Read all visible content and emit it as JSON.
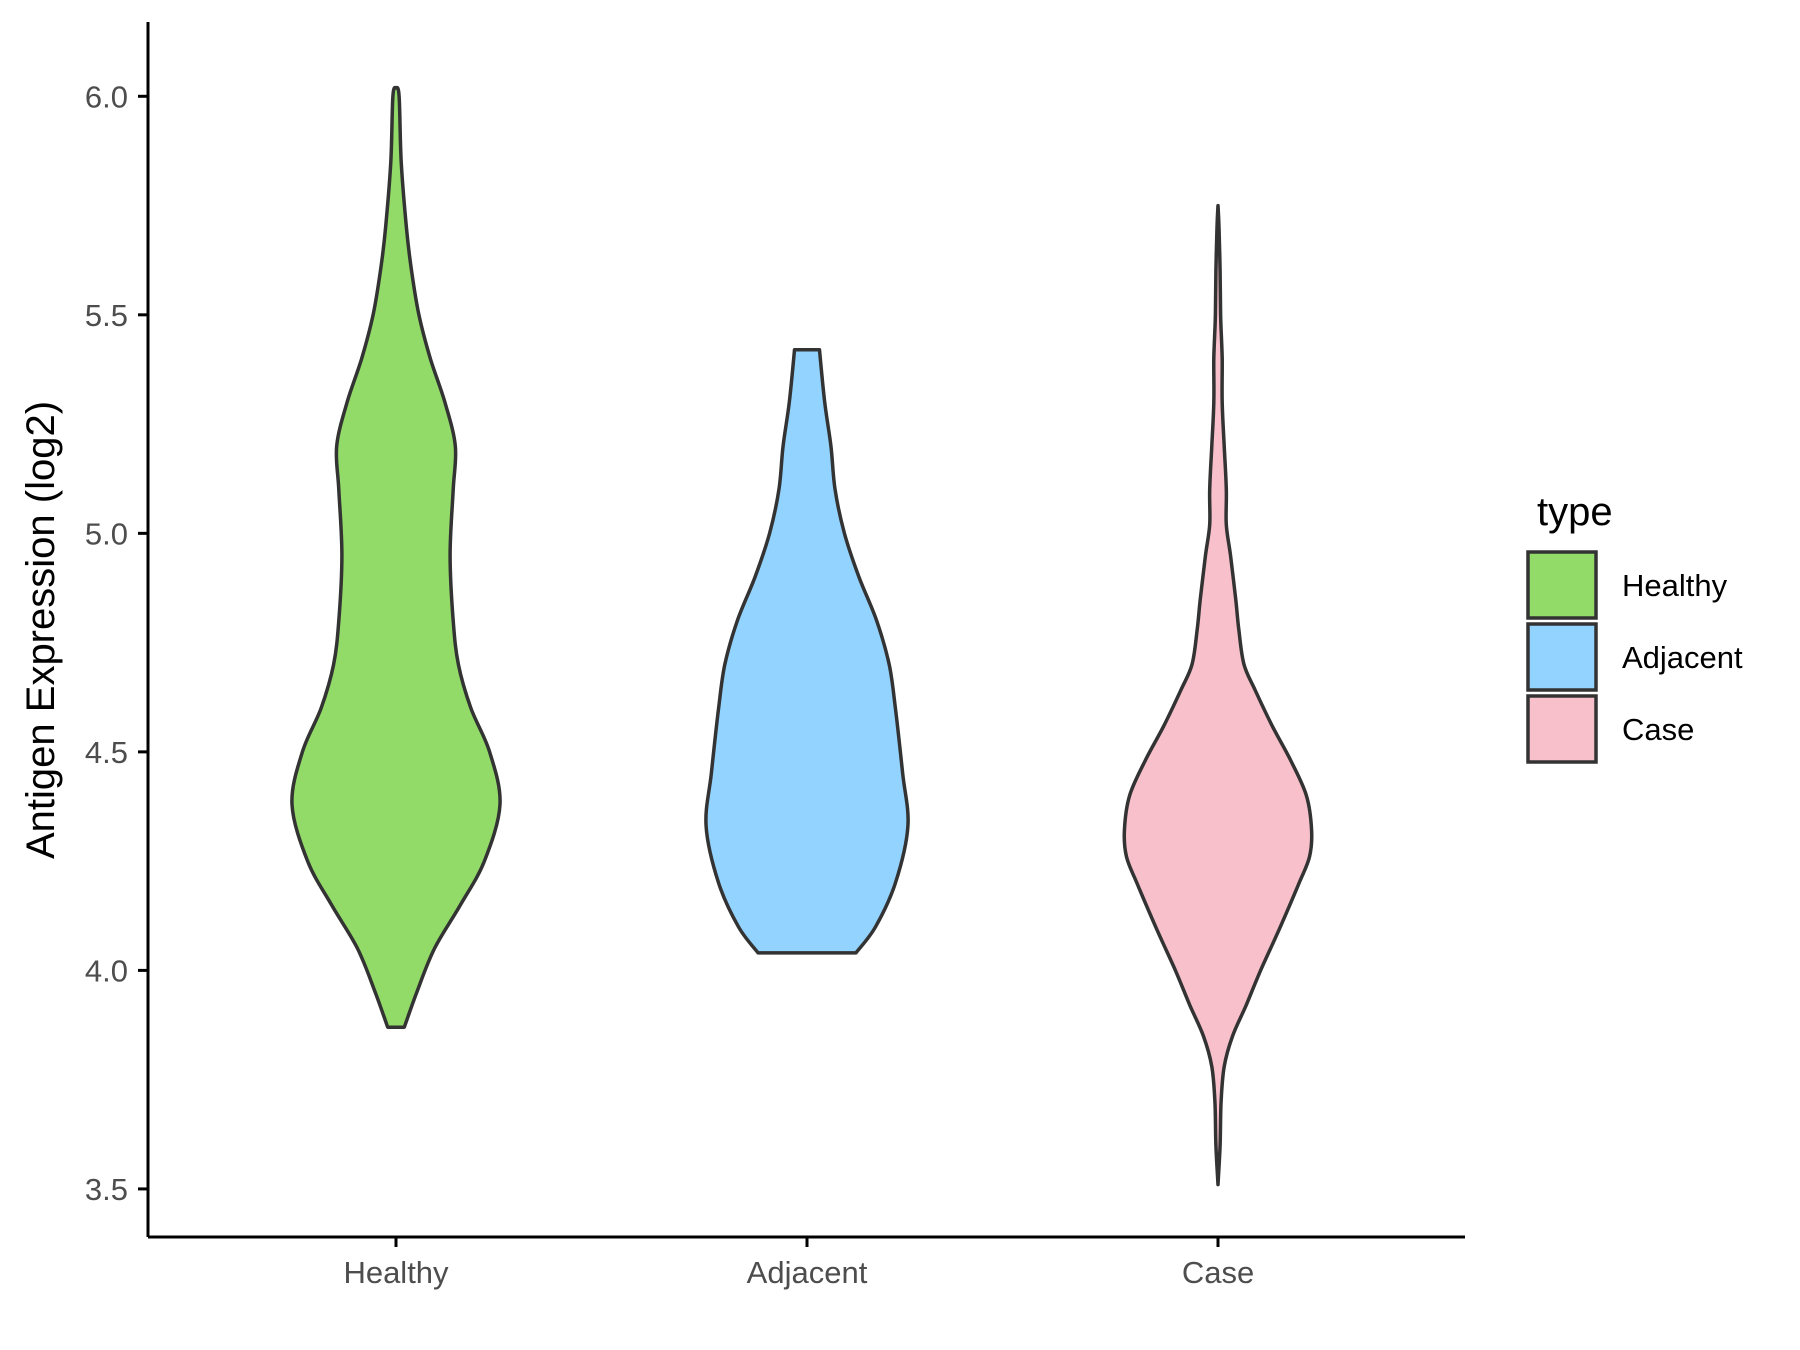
{
  "chart_data": {
    "type": "violin",
    "xlabel": "",
    "ylabel": "Antigen Expression (log2)",
    "ylim": [
      3.39,
      6.17
    ],
    "y_ticks": [
      "3.5",
      "4.0",
      "4.5",
      "5.0",
      "5.5",
      "6.0"
    ],
    "y_tick_values": [
      3.5,
      4.0,
      4.5,
      5.0,
      5.5,
      6.0
    ],
    "categories": [
      "Healthy",
      "Adjacent",
      "Case"
    ],
    "grid": false,
    "legend": {
      "title": "type",
      "position": "right",
      "entries": [
        "Healthy",
        "Adjacent",
        "Case"
      ]
    },
    "series": [
      {
        "name": "Healthy",
        "color": "#93DB69",
        "min": 3.87,
        "max": 6.02,
        "density_profile": [
          [
            3.87,
            0.08
          ],
          [
            3.95,
            0.2
          ],
          [
            4.05,
            0.37
          ],
          [
            4.15,
            0.62
          ],
          [
            4.25,
            0.85
          ],
          [
            4.38,
            1.0
          ],
          [
            4.5,
            0.9
          ],
          [
            4.6,
            0.72
          ],
          [
            4.7,
            0.6
          ],
          [
            4.8,
            0.55
          ],
          [
            4.95,
            0.52
          ],
          [
            5.1,
            0.55
          ],
          [
            5.2,
            0.57
          ],
          [
            5.3,
            0.47
          ],
          [
            5.4,
            0.33
          ],
          [
            5.5,
            0.22
          ],
          [
            5.6,
            0.15
          ],
          [
            5.7,
            0.1
          ],
          [
            5.85,
            0.05
          ],
          [
            6.0,
            0.03
          ],
          [
            6.02,
            0.0
          ]
        ]
      },
      {
        "name": "Adjacent",
        "color": "#93D3FF",
        "min": 4.04,
        "max": 5.42,
        "density_profile": [
          [
            4.04,
            0.47
          ],
          [
            4.1,
            0.66
          ],
          [
            4.2,
            0.85
          ],
          [
            4.33,
            0.97
          ],
          [
            4.45,
            0.92
          ],
          [
            4.6,
            0.85
          ],
          [
            4.7,
            0.79
          ],
          [
            4.8,
            0.67
          ],
          [
            4.9,
            0.5
          ],
          [
            5.0,
            0.36
          ],
          [
            5.1,
            0.27
          ],
          [
            5.2,
            0.23
          ],
          [
            5.3,
            0.17
          ],
          [
            5.42,
            0.12
          ]
        ]
      },
      {
        "name": "Case",
        "color": "#F7C0CB",
        "min": 3.51,
        "max": 5.75,
        "density_profile": [
          [
            3.51,
            0.0
          ],
          [
            3.6,
            0.02
          ],
          [
            3.7,
            0.03
          ],
          [
            3.78,
            0.06
          ],
          [
            3.85,
            0.14
          ],
          [
            3.92,
            0.27
          ],
          [
            4.0,
            0.41
          ],
          [
            4.1,
            0.6
          ],
          [
            4.2,
            0.78
          ],
          [
            4.26,
            0.88
          ],
          [
            4.32,
            0.9
          ],
          [
            4.4,
            0.85
          ],
          [
            4.48,
            0.7
          ],
          [
            4.56,
            0.52
          ],
          [
            4.64,
            0.36
          ],
          [
            4.7,
            0.25
          ],
          [
            4.78,
            0.2
          ],
          [
            4.85,
            0.17
          ],
          [
            4.95,
            0.12
          ],
          [
            5.02,
            0.08
          ],
          [
            5.1,
            0.08
          ],
          [
            5.2,
            0.06
          ],
          [
            5.3,
            0.04
          ],
          [
            5.4,
            0.04
          ],
          [
            5.5,
            0.025
          ],
          [
            5.6,
            0.02
          ],
          [
            5.7,
            0.01
          ],
          [
            5.75,
            0.0
          ]
        ]
      }
    ]
  }
}
